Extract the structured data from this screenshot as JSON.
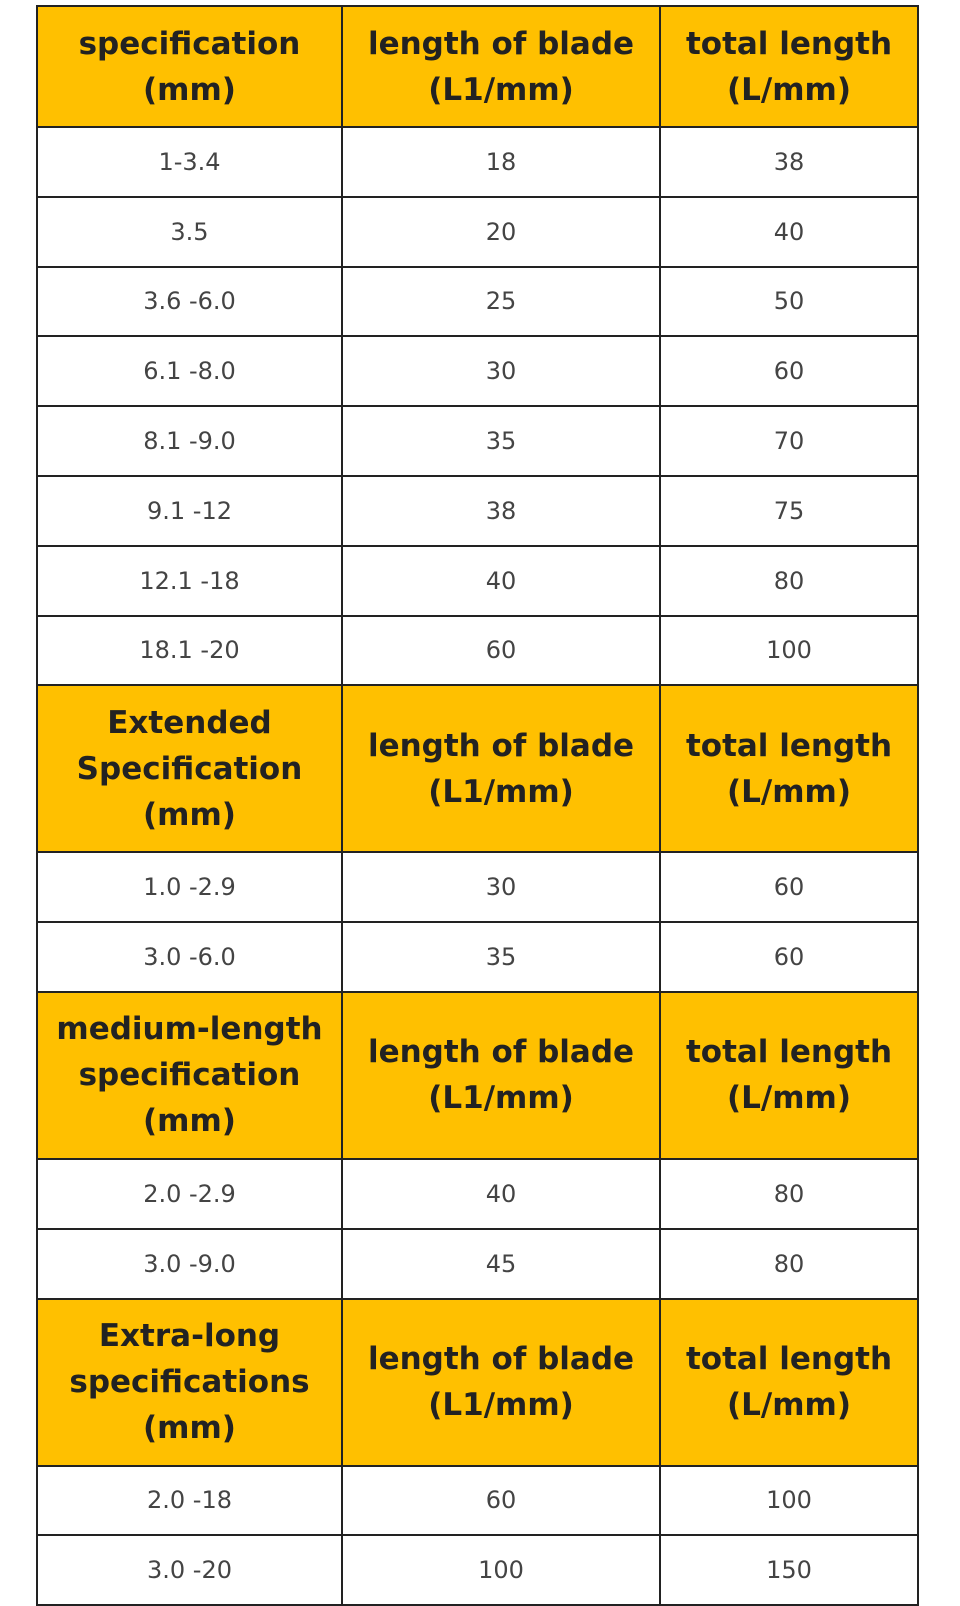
{
  "sections": [
    {
      "header": [
        [
          "specification",
          "(mm)"
        ],
        [
          "length of blade",
          "(L1/mm)"
        ],
        [
          "total length",
          "(L/mm)"
        ]
      ],
      "rows": [
        [
          "1-3.4",
          18,
          38
        ],
        [
          "3.5",
          20,
          40
        ],
        [
          "3.6 -6.0",
          25,
          50
        ],
        [
          "6.1 -8.0",
          30,
          60
        ],
        [
          "8.1 -9.0",
          35,
          70
        ],
        [
          "9.1 -12",
          38,
          75
        ],
        [
          "12.1 -18",
          40,
          80
        ],
        [
          "18.1 -20",
          60,
          100
        ]
      ]
    },
    {
      "header": [
        [
          "Extended",
          "Specification",
          "(mm)"
        ],
        [
          "length of blade",
          "(L1/mm)"
        ],
        [
          "total length",
          "(L/mm)"
        ]
      ],
      "rows": [
        [
          "1.0 -2.9",
          30,
          60
        ],
        [
          "3.0 -6.0",
          35,
          60
        ]
      ]
    },
    {
      "header": [
        [
          "medium-length",
          "specification",
          "(mm)"
        ],
        [
          "length of blade",
          "(L1/mm)"
        ],
        [
          "total length",
          "(L/mm)"
        ]
      ],
      "rows": [
        [
          "2.0 -2.9",
          40,
          80
        ],
        [
          "3.0 -9.0",
          45,
          80
        ]
      ]
    },
    {
      "header": [
        [
          "Extra-long",
          "specifications",
          "(mm)"
        ],
        [
          "length of blade",
          "(L1/mm)"
        ],
        [
          "total length",
          "(L/mm)"
        ]
      ],
      "rows": [
        [
          "2.0 -18",
          60,
          100
        ],
        [
          "3.0 -20",
          100,
          150
        ]
      ]
    }
  ]
}
